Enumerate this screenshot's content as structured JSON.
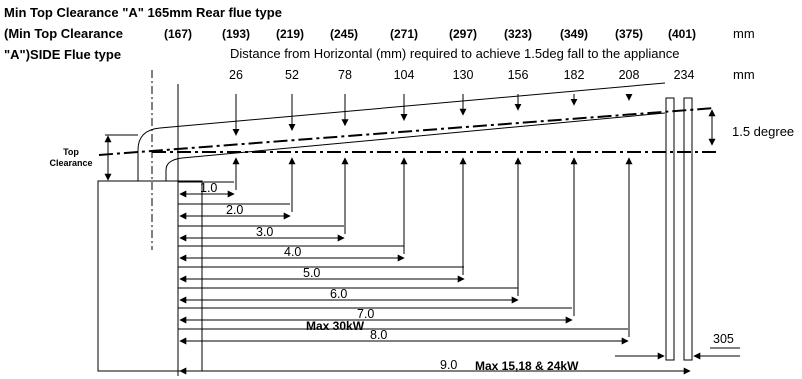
{
  "header": {
    "line1": "Min Top Clearance \"A\" 165mm Rear flue type",
    "line2": "(Min Top Clearance",
    "line3": "\"A\")SIDE Flue type",
    "distance_note": "Distance from Horizontal (mm) required to achieve 1.5deg fall to the appliance",
    "unit_top": "mm",
    "unit_bottom": "mm"
  },
  "side_clearances": [
    "(167)",
    "(193)",
    "(219)",
    "(245)",
    "(271)",
    "(297)",
    "(323)",
    "(349)",
    "(375)",
    "(401)"
  ],
  "fall_values": [
    "26",
    "52",
    "78",
    "104",
    "130",
    "156",
    "182",
    "208",
    "234"
  ],
  "lengths": [
    "1.0",
    "2.0",
    "3.0",
    "4.0",
    "5.0",
    "6.0",
    "7.0",
    "8.0",
    "9.0"
  ],
  "notes": {
    "max_8": "Max 30kW",
    "max_9": "Max 15,18 & 24kW",
    "angle": "1.5 degree",
    "wall_thickness": "305",
    "top_clearance_1": "Top",
    "top_clearance_2": "Clearance"
  }
}
